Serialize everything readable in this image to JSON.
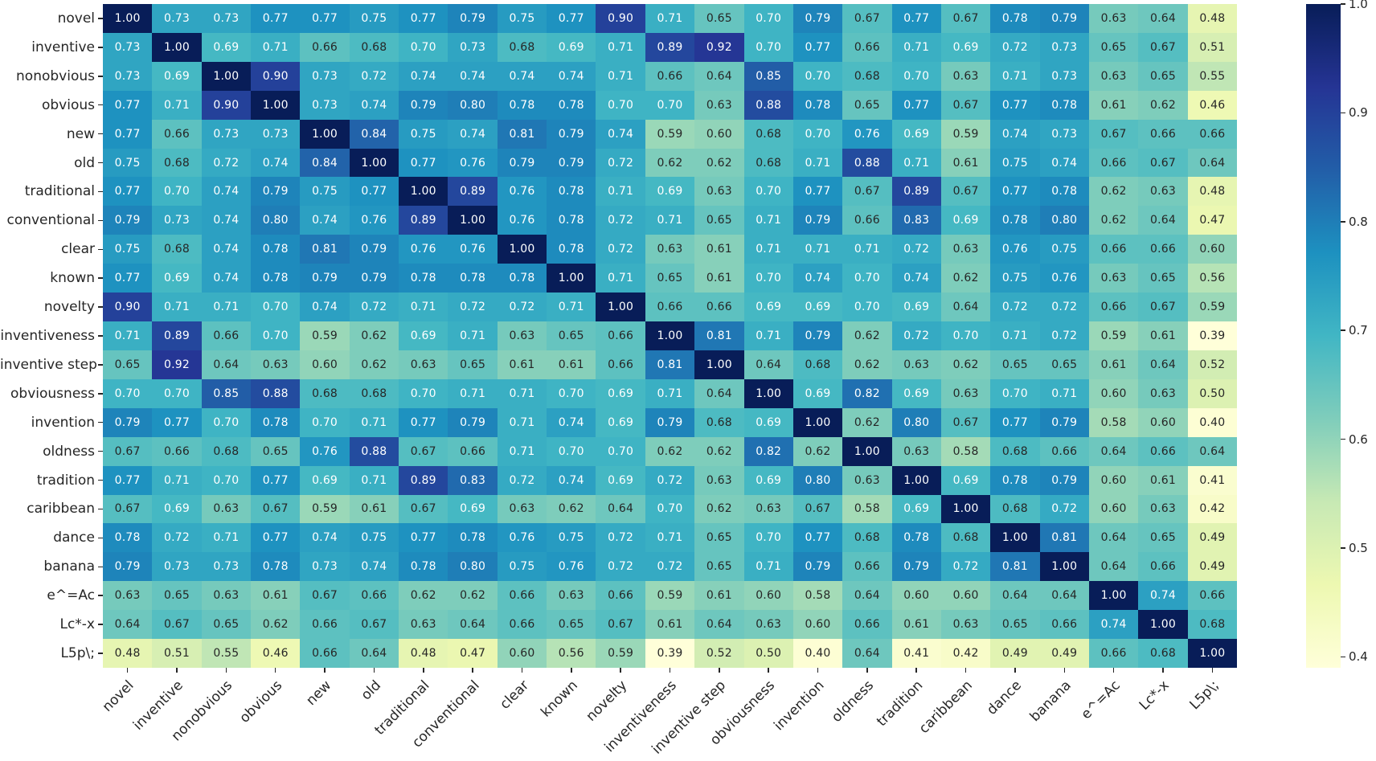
{
  "chart_data": {
    "type": "heatmap",
    "title": "",
    "xlabel": "",
    "ylabel": "",
    "labels": [
      "novel",
      "inventive",
      "nonobvious",
      "obvious",
      "new",
      "old",
      "traditional",
      "conventional",
      "clear",
      "known",
      "novelty",
      "inventiveness",
      "inventive step",
      "obviousness",
      "invention",
      "oldness",
      "tradition",
      "caribbean",
      "dance",
      "banana",
      "e^=Ac",
      "Lc*-x",
      "L5p\\;"
    ],
    "matrix": [
      [
        1.0,
        0.73,
        0.73,
        0.77,
        0.77,
        0.75,
        0.77,
        0.79,
        0.75,
        0.77,
        0.9,
        0.71,
        0.65,
        0.7,
        0.79,
        0.67,
        0.77,
        0.67,
        0.78,
        0.79,
        0.63,
        0.64,
        0.48
      ],
      [
        0.73,
        1.0,
        0.69,
        0.71,
        0.66,
        0.68,
        0.7,
        0.73,
        0.68,
        0.69,
        0.71,
        0.89,
        0.92,
        0.7,
        0.77,
        0.66,
        0.71,
        0.69,
        0.72,
        0.73,
        0.65,
        0.67,
        0.51
      ],
      [
        0.73,
        0.69,
        1.0,
        0.9,
        0.73,
        0.72,
        0.74,
        0.74,
        0.74,
        0.74,
        0.71,
        0.66,
        0.64,
        0.85,
        0.7,
        0.68,
        0.7,
        0.63,
        0.71,
        0.73,
        0.63,
        0.65,
        0.55
      ],
      [
        0.77,
        0.71,
        0.9,
        1.0,
        0.73,
        0.74,
        0.79,
        0.8,
        0.78,
        0.78,
        0.7,
        0.7,
        0.63,
        0.88,
        0.78,
        0.65,
        0.77,
        0.67,
        0.77,
        0.78,
        0.61,
        0.62,
        0.46
      ],
      [
        0.77,
        0.66,
        0.73,
        0.73,
        1.0,
        0.84,
        0.75,
        0.74,
        0.81,
        0.79,
        0.74,
        0.59,
        0.6,
        0.68,
        0.7,
        0.76,
        0.69,
        0.59,
        0.74,
        0.73,
        0.67,
        0.66,
        0.66
      ],
      [
        0.75,
        0.68,
        0.72,
        0.74,
        0.84,
        1.0,
        0.77,
        0.76,
        0.79,
        0.79,
        0.72,
        0.62,
        0.62,
        0.68,
        0.71,
        0.88,
        0.71,
        0.61,
        0.75,
        0.74,
        0.66,
        0.67,
        0.64
      ],
      [
        0.77,
        0.7,
        0.74,
        0.79,
        0.75,
        0.77,
        1.0,
        0.89,
        0.76,
        0.78,
        0.71,
        0.69,
        0.63,
        0.7,
        0.77,
        0.67,
        0.89,
        0.67,
        0.77,
        0.78,
        0.62,
        0.63,
        0.48
      ],
      [
        0.79,
        0.73,
        0.74,
        0.8,
        0.74,
        0.76,
        0.89,
        1.0,
        0.76,
        0.78,
        0.72,
        0.71,
        0.65,
        0.71,
        0.79,
        0.66,
        0.83,
        0.69,
        0.78,
        0.8,
        0.62,
        0.64,
        0.47
      ],
      [
        0.75,
        0.68,
        0.74,
        0.78,
        0.81,
        0.79,
        0.76,
        0.76,
        1.0,
        0.78,
        0.72,
        0.63,
        0.61,
        0.71,
        0.71,
        0.71,
        0.72,
        0.63,
        0.76,
        0.75,
        0.66,
        0.66,
        0.6
      ],
      [
        0.77,
        0.69,
        0.74,
        0.78,
        0.79,
        0.79,
        0.78,
        0.78,
        0.78,
        1.0,
        0.71,
        0.65,
        0.61,
        0.7,
        0.74,
        0.7,
        0.74,
        0.62,
        0.75,
        0.76,
        0.63,
        0.65,
        0.56
      ],
      [
        0.9,
        0.71,
        0.71,
        0.7,
        0.74,
        0.72,
        0.71,
        0.72,
        0.72,
        0.71,
        1.0,
        0.66,
        0.66,
        0.69,
        0.69,
        0.7,
        0.69,
        0.64,
        0.72,
        0.72,
        0.66,
        0.67,
        0.59
      ],
      [
        0.71,
        0.89,
        0.66,
        0.7,
        0.59,
        0.62,
        0.69,
        0.71,
        0.63,
        0.65,
        0.66,
        1.0,
        0.81,
        0.71,
        0.79,
        0.62,
        0.72,
        0.7,
        0.71,
        0.72,
        0.59,
        0.61,
        0.39
      ],
      [
        0.65,
        0.92,
        0.64,
        0.63,
        0.6,
        0.62,
        0.63,
        0.65,
        0.61,
        0.61,
        0.66,
        0.81,
        1.0,
        0.64,
        0.68,
        0.62,
        0.63,
        0.62,
        0.65,
        0.65,
        0.61,
        0.64,
        0.52
      ],
      [
        0.7,
        0.7,
        0.85,
        0.88,
        0.68,
        0.68,
        0.7,
        0.71,
        0.71,
        0.7,
        0.69,
        0.71,
        0.64,
        1.0,
        0.69,
        0.82,
        0.69,
        0.63,
        0.7,
        0.71,
        0.6,
        0.63,
        0.5
      ],
      [
        0.79,
        0.77,
        0.7,
        0.78,
        0.7,
        0.71,
        0.77,
        0.79,
        0.71,
        0.74,
        0.69,
        0.79,
        0.68,
        0.69,
        1.0,
        0.62,
        0.8,
        0.67,
        0.77,
        0.79,
        0.58,
        0.6,
        0.4
      ],
      [
        0.67,
        0.66,
        0.68,
        0.65,
        0.76,
        0.88,
        0.67,
        0.66,
        0.71,
        0.7,
        0.7,
        0.62,
        0.62,
        0.82,
        0.62,
        1.0,
        0.63,
        0.58,
        0.68,
        0.66,
        0.64,
        0.66,
        0.64
      ],
      [
        0.77,
        0.71,
        0.7,
        0.77,
        0.69,
        0.71,
        0.89,
        0.83,
        0.72,
        0.74,
        0.69,
        0.72,
        0.63,
        0.69,
        0.8,
        0.63,
        1.0,
        0.69,
        0.78,
        0.79,
        0.6,
        0.61,
        0.41
      ],
      [
        0.67,
        0.69,
        0.63,
        0.67,
        0.59,
        0.61,
        0.67,
        0.69,
        0.63,
        0.62,
        0.64,
        0.7,
        0.62,
        0.63,
        0.67,
        0.58,
        0.69,
        1.0,
        0.68,
        0.72,
        0.6,
        0.63,
        0.42
      ],
      [
        0.78,
        0.72,
        0.71,
        0.77,
        0.74,
        0.75,
        0.77,
        0.78,
        0.76,
        0.75,
        0.72,
        0.71,
        0.65,
        0.7,
        0.77,
        0.68,
        0.78,
        0.68,
        1.0,
        0.81,
        0.64,
        0.65,
        0.49
      ],
      [
        0.79,
        0.73,
        0.73,
        0.78,
        0.73,
        0.74,
        0.78,
        0.8,
        0.75,
        0.76,
        0.72,
        0.72,
        0.65,
        0.71,
        0.79,
        0.66,
        0.79,
        0.72,
        0.81,
        1.0,
        0.64,
        0.66,
        0.49
      ],
      [
        0.63,
        0.65,
        0.63,
        0.61,
        0.67,
        0.66,
        0.62,
        0.62,
        0.66,
        0.63,
        0.66,
        0.59,
        0.61,
        0.6,
        0.58,
        0.64,
        0.6,
        0.6,
        0.64,
        0.64,
        1.0,
        0.74,
        0.66
      ],
      [
        0.64,
        0.67,
        0.65,
        0.62,
        0.66,
        0.67,
        0.63,
        0.64,
        0.66,
        0.65,
        0.67,
        0.61,
        0.64,
        0.63,
        0.6,
        0.66,
        0.61,
        0.63,
        0.65,
        0.66,
        0.74,
        1.0,
        0.68
      ],
      [
        0.48,
        0.51,
        0.55,
        0.46,
        0.66,
        0.64,
        0.48,
        0.47,
        0.6,
        0.56,
        0.59,
        0.39,
        0.52,
        0.5,
        0.4,
        0.64,
        0.41,
        0.42,
        0.49,
        0.49,
        0.66,
        0.68,
        1.0
      ]
    ],
    "value_format": "0.00",
    "vmin": 0.39,
    "vmax": 1.0,
    "colormap_name": "YlGnBu",
    "colormap_stops": [
      "#ffffd9",
      "#edf8b1",
      "#c7e9b4",
      "#7fcdbb",
      "#41b6c4",
      "#1d91c0",
      "#225ea8",
      "#253494",
      "#081d58"
    ],
    "colorbar": {
      "tick_labels": [
        "1.0",
        "0.9",
        "0.8",
        "0.7",
        "0.6",
        "0.5",
        "0.4"
      ],
      "tick_values": [
        1.0,
        0.9,
        0.8,
        0.7,
        0.6,
        0.5,
        0.4
      ],
      "position": "right"
    },
    "annotation_text_dark": "#262626",
    "annotation_text_light": "#ffffff",
    "grid": false,
    "legend": false
  }
}
